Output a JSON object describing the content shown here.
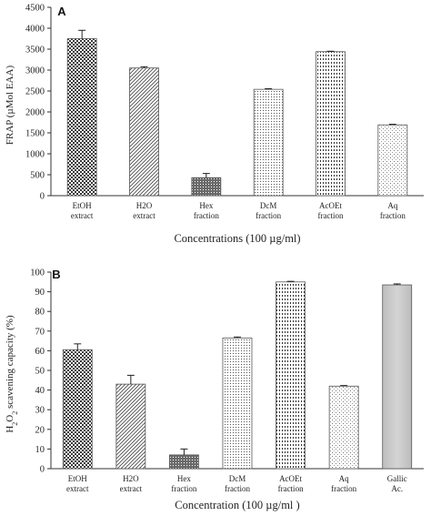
{
  "chart_data": [
    {
      "type": "bar",
      "panel_label": "A",
      "categories": [
        [
          "EtOH",
          "extract"
        ],
        [
          "H2O",
          "extract"
        ],
        [
          "Hex",
          "fraction"
        ],
        [
          "DcM",
          "fraction"
        ],
        [
          "AcOEt",
          "fraction"
        ],
        [
          "Aq",
          "fraction"
        ]
      ],
      "values": [
        3750,
        3050,
        430,
        2540,
        3440,
        1690
      ],
      "errors": [
        200,
        30,
        100,
        15,
        10,
        15
      ],
      "ylabel": "FRAP (µMol EAA)",
      "xlabel": "Concentrations (100 µg/ml)",
      "ylim": [
        0,
        4500
      ],
      "yticks": [
        0,
        500,
        1000,
        1500,
        2000,
        2500,
        3000,
        3500,
        4000,
        4500
      ],
      "patterns": [
        "checker",
        "diag",
        "dots-dark",
        "dots-fine",
        "vert",
        "dots-sparse"
      ],
      "grid": false
    },
    {
      "type": "bar",
      "panel_label": "B",
      "categories": [
        [
          "EtOH",
          "extract"
        ],
        [
          "H2O",
          "extract"
        ],
        [
          "Hex",
          "fraction"
        ],
        [
          "DcM",
          "fraction"
        ],
        [
          "AcOEt",
          "fraction"
        ],
        [
          "Aq",
          "fraction"
        ],
        [
          "Gallic",
          "Ac."
        ]
      ],
      "values": [
        60.5,
        43,
        7,
        66.5,
        95,
        42,
        93.5
      ],
      "errors": [
        3,
        4.5,
        3,
        0.5,
        0.3,
        0.3,
        0.5
      ],
      "ylabel_parts": [
        "H",
        "2",
        "O",
        "2",
        " scavening capacity (%)"
      ],
      "xlabel": "Concentration (100 µg/ml )",
      "ylim": [
        0,
        100
      ],
      "yticks": [
        0,
        10,
        20,
        30,
        40,
        50,
        60,
        70,
        80,
        90,
        100
      ],
      "patterns": [
        "checker",
        "diag",
        "dots-dark",
        "dots-fine",
        "vert",
        "dots-sparse",
        "solid-grey"
      ],
      "grid": false
    }
  ]
}
